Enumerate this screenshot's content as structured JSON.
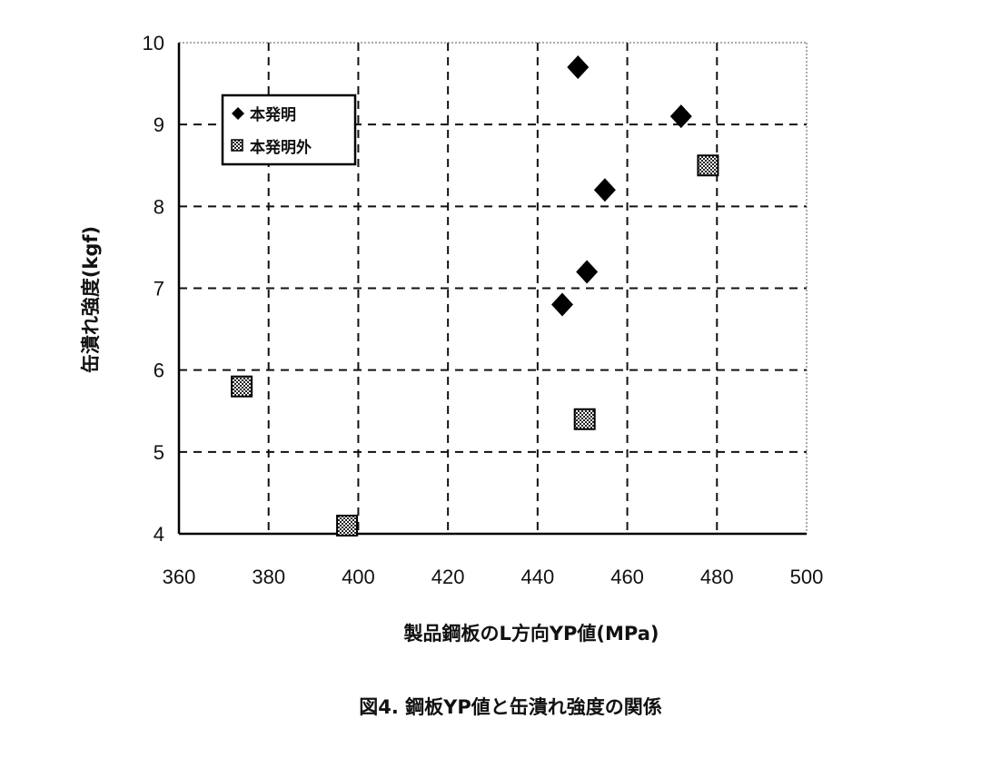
{
  "chart_data": {
    "type": "scatter",
    "title": "",
    "caption": "図4. 鋼板YP値と缶潰れ強度の関係",
    "xlabel": "製品鋼板のL方向YP値(MPa)",
    "ylabel": "缶潰れ強度(kgf)",
    "xlim": [
      360,
      500
    ],
    "ylim": [
      4,
      10
    ],
    "xticks": [
      360,
      380,
      400,
      420,
      440,
      460,
      480,
      500
    ],
    "yticks": [
      4,
      5,
      6,
      7,
      8,
      9,
      10
    ],
    "grid": true,
    "legend_position": "top-left",
    "series": [
      {
        "name": "本発明",
        "marker": "diamond",
        "color": "#000000",
        "x": [
          449,
          472,
          455,
          451,
          445.5
        ],
        "y": [
          9.7,
          9.1,
          8.2,
          7.2,
          6.8
        ]
      },
      {
        "name": "本発明外",
        "marker": "hatched-square",
        "color": "#555555",
        "x": [
          478,
          374,
          450.5,
          397.5
        ],
        "y": [
          8.5,
          5.8,
          5.4,
          4.1
        ]
      }
    ]
  }
}
